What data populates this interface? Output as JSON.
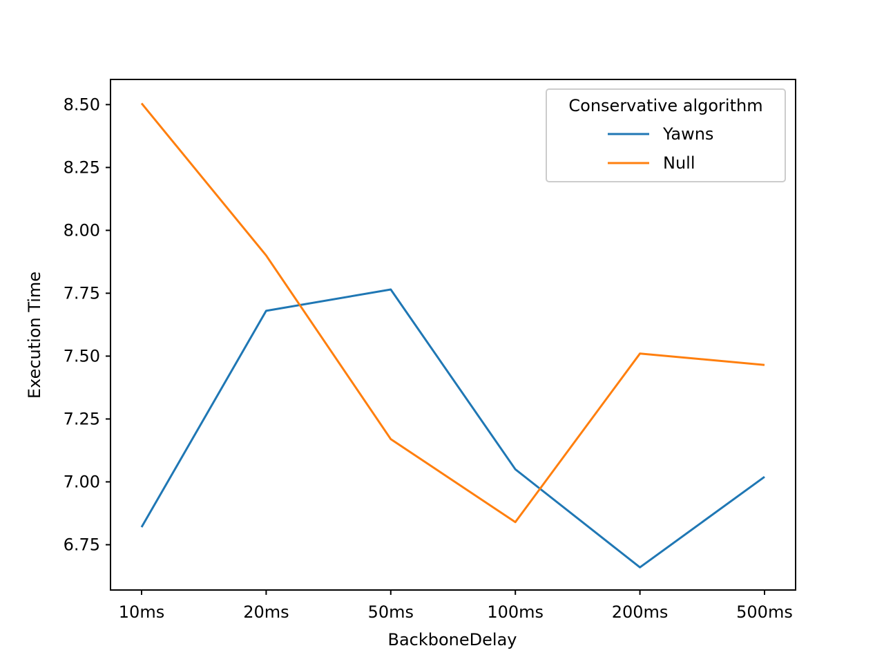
{
  "chart_data": {
    "type": "line",
    "xlabel": "BackboneDelay",
    "ylabel": "Execution Time",
    "categories": [
      "10ms",
      "20ms",
      "50ms",
      "100ms",
      "200ms",
      "500ms"
    ],
    "ylim": [
      6.57,
      8.6
    ],
    "yticks": [
      "6.75",
      "7.00",
      "7.25",
      "7.50",
      "7.75",
      "8.00",
      "8.25",
      "8.50"
    ],
    "grid": false,
    "legend": {
      "title": "Conservative algorithm",
      "placement": "top-right"
    },
    "series": [
      {
        "name": "Yawns",
        "color": "#1f77b4",
        "values": [
          6.82,
          7.68,
          7.765,
          7.05,
          6.66,
          7.02
        ]
      },
      {
        "name": "Null",
        "color": "#ff7f0e",
        "values": [
          8.505,
          7.9,
          7.17,
          6.84,
          7.51,
          7.465
        ]
      }
    ]
  }
}
